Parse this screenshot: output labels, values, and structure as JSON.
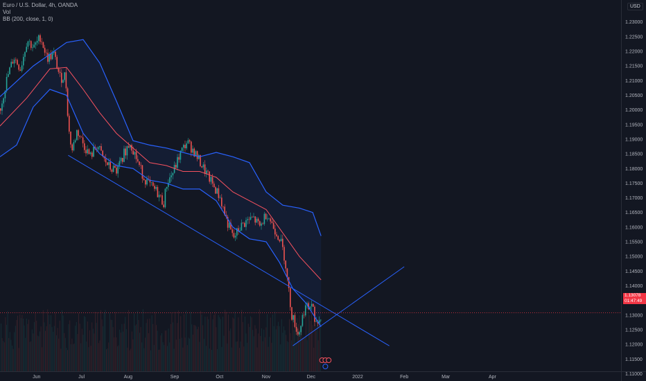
{
  "legend": {
    "symbol": "Euro / U.S. Dollar, 4h, OANDA",
    "volume": "Vol",
    "indicator": "BB (200, close, 1, 0)"
  },
  "currency": "USD",
  "last_price": {
    "value": "1.13078",
    "countdown": "01:47:49",
    "price": 1.13078
  },
  "colors": {
    "background": "#131722",
    "up": "#26a69a",
    "down": "#ef5350",
    "band": "#2962ff",
    "basis": "#f7525f",
    "trendline": "#2962ff",
    "axis_text": "#b2b5be",
    "price_line": "#f23645"
  },
  "chart_data": {
    "type": "candlestick",
    "symbol": "EURUSD",
    "timeframe": "4h",
    "y_range": [
      1.1075,
      1.2375
    ],
    "y_ticks": [
      "1.23000",
      "1.22500",
      "1.22000",
      "1.21500",
      "1.21000",
      "1.20500",
      "1.20000",
      "1.19500",
      "1.19000",
      "1.18500",
      "1.18000",
      "1.17500",
      "1.17000",
      "1.16500",
      "1.16000",
      "1.15500",
      "1.15000",
      "1.14500",
      "1.14000",
      "1.13500",
      "1.13000",
      "1.12500",
      "1.12000",
      "1.11500",
      "1.11000"
    ],
    "x_ticks": [
      {
        "label": "Jun",
        "t": 0.11
      },
      {
        "label": "Jul",
        "t": 0.245
      },
      {
        "label": "Aug",
        "t": 0.385
      },
      {
        "label": "Sep",
        "t": 0.525
      },
      {
        "label": "Oct",
        "t": 0.66
      },
      {
        "label": "Nov",
        "t": 0.8
      },
      {
        "label": "Dec",
        "t": 0.935
      },
      {
        "label": "2022",
        "t": 1.075
      },
      {
        "label": "Feb",
        "t": 1.215
      },
      {
        "label": "Mar",
        "t": 1.34
      },
      {
        "label": "Apr",
        "t": 1.48
      }
    ],
    "price_path": [
      {
        "t": 0.0,
        "p": 1.2005
      },
      {
        "t": 0.02,
        "p": 1.211
      },
      {
        "t": 0.04,
        "p": 1.218
      },
      {
        "t": 0.06,
        "p": 1.214
      },
      {
        "t": 0.08,
        "p": 1.224
      },
      {
        "t": 0.1,
        "p": 1.221
      },
      {
        "t": 0.12,
        "p": 1.225
      },
      {
        "t": 0.14,
        "p": 1.2175
      },
      {
        "t": 0.16,
        "p": 1.219
      },
      {
        "t": 0.18,
        "p": 1.2105
      },
      {
        "t": 0.195,
        "p": 1.212
      },
      {
        "t": 0.205,
        "p": 1.193
      },
      {
        "t": 0.215,
        "p": 1.186
      },
      {
        "t": 0.23,
        "p": 1.193
      },
      {
        "t": 0.25,
        "p": 1.188
      },
      {
        "t": 0.27,
        "p": 1.184
      },
      {
        "t": 0.29,
        "p": 1.188
      },
      {
        "t": 0.31,
        "p": 1.183
      },
      {
        "t": 0.33,
        "p": 1.18
      },
      {
        "t": 0.35,
        "p": 1.179
      },
      {
        "t": 0.37,
        "p": 1.185
      },
      {
        "t": 0.39,
        "p": 1.189
      },
      {
        "t": 0.41,
        "p": 1.183
      },
      {
        "t": 0.43,
        "p": 1.177
      },
      {
        "t": 0.45,
        "p": 1.174
      },
      {
        "t": 0.47,
        "p": 1.172
      },
      {
        "t": 0.49,
        "p": 1.168
      },
      {
        "t": 0.5,
        "p": 1.175
      },
      {
        "t": 0.52,
        "p": 1.179
      },
      {
        "t": 0.54,
        "p": 1.185
      },
      {
        "t": 0.56,
        "p": 1.189
      },
      {
        "t": 0.58,
        "p": 1.186
      },
      {
        "t": 0.6,
        "p": 1.182
      },
      {
        "t": 0.62,
        "p": 1.178
      },
      {
        "t": 0.64,
        "p": 1.174
      },
      {
        "t": 0.66,
        "p": 1.17
      },
      {
        "t": 0.68,
        "p": 1.162
      },
      {
        "t": 0.7,
        "p": 1.156
      },
      {
        "t": 0.72,
        "p": 1.16
      },
      {
        "t": 0.74,
        "p": 1.162
      },
      {
        "t": 0.76,
        "p": 1.163
      },
      {
        "t": 0.78,
        "p": 1.16
      },
      {
        "t": 0.8,
        "p": 1.165
      },
      {
        "t": 0.82,
        "p": 1.16
      },
      {
        "t": 0.84,
        "p": 1.156
      },
      {
        "t": 0.855,
        "p": 1.149
      },
      {
        "t": 0.865,
        "p": 1.139
      },
      {
        "t": 0.875,
        "p": 1.13
      },
      {
        "t": 0.885,
        "p": 1.127
      },
      {
        "t": 0.895,
        "p": 1.123
      },
      {
        "t": 0.905,
        "p": 1.128
      },
      {
        "t": 0.915,
        "p": 1.133
      },
      {
        "t": 0.925,
        "p": 1.132
      },
      {
        "t": 0.935,
        "p": 1.134
      },
      {
        "t": 0.945,
        "p": 1.129
      },
      {
        "t": 0.955,
        "p": 1.127
      },
      {
        "t": 0.965,
        "p": 1.1308
      }
    ],
    "bollinger": {
      "period": 200,
      "source": "close",
      "mult": 1,
      "offset": 0,
      "upper": [
        {
          "t": 0.0,
          "p": 1.2045
        },
        {
          "t": 0.1,
          "p": 1.215
        },
        {
          "t": 0.2,
          "p": 1.223
        },
        {
          "t": 0.25,
          "p": 1.224
        },
        {
          "t": 0.3,
          "p": 1.216
        },
        {
          "t": 0.35,
          "p": 1.203
        },
        {
          "t": 0.4,
          "p": 1.1895
        },
        {
          "t": 0.45,
          "p": 1.188
        },
        {
          "t": 0.5,
          "p": 1.187
        },
        {
          "t": 0.55,
          "p": 1.1855
        },
        {
          "t": 0.6,
          "p": 1.184
        },
        {
          "t": 0.65,
          "p": 1.1855
        },
        {
          "t": 0.7,
          "p": 1.184
        },
        {
          "t": 0.75,
          "p": 1.182
        },
        {
          "t": 0.8,
          "p": 1.172
        },
        {
          "t": 0.85,
          "p": 1.1675
        },
        {
          "t": 0.9,
          "p": 1.1665
        },
        {
          "t": 0.94,
          "p": 1.165
        },
        {
          "t": 0.965,
          "p": 1.157
        }
      ],
      "basis": [
        {
          "t": 0.0,
          "p": 1.1945
        },
        {
          "t": 0.08,
          "p": 1.204
        },
        {
          "t": 0.15,
          "p": 1.214
        },
        {
          "t": 0.2,
          "p": 1.2145
        },
        {
          "t": 0.25,
          "p": 1.207
        },
        {
          "t": 0.3,
          "p": 1.199
        },
        {
          "t": 0.35,
          "p": 1.192
        },
        {
          "t": 0.4,
          "p": 1.187
        },
        {
          "t": 0.45,
          "p": 1.182
        },
        {
          "t": 0.5,
          "p": 1.181
        },
        {
          "t": 0.55,
          "p": 1.179
        },
        {
          "t": 0.6,
          "p": 1.179
        },
        {
          "t": 0.65,
          "p": 1.177
        },
        {
          "t": 0.7,
          "p": 1.172
        },
        {
          "t": 0.75,
          "p": 1.169
        },
        {
          "t": 0.8,
          "p": 1.166
        },
        {
          "t": 0.85,
          "p": 1.158
        },
        {
          "t": 0.9,
          "p": 1.15
        },
        {
          "t": 0.965,
          "p": 1.142
        }
      ],
      "lower": [
        {
          "t": 0.0,
          "p": 1.184
        },
        {
          "t": 0.05,
          "p": 1.188
        },
        {
          "t": 0.1,
          "p": 1.201
        },
        {
          "t": 0.15,
          "p": 1.207
        },
        {
          "t": 0.2,
          "p": 1.205
        },
        {
          "t": 0.25,
          "p": 1.192
        },
        {
          "t": 0.3,
          "p": 1.185
        },
        {
          "t": 0.35,
          "p": 1.181
        },
        {
          "t": 0.4,
          "p": 1.18
        },
        {
          "t": 0.45,
          "p": 1.176
        },
        {
          "t": 0.5,
          "p": 1.175
        },
        {
          "t": 0.55,
          "p": 1.173
        },
        {
          "t": 0.6,
          "p": 1.173
        },
        {
          "t": 0.65,
          "p": 1.169
        },
        {
          "t": 0.7,
          "p": 1.16
        },
        {
          "t": 0.75,
          "p": 1.156
        },
        {
          "t": 0.8,
          "p": 1.155
        },
        {
          "t": 0.84,
          "p": 1.148
        },
        {
          "t": 0.88,
          "p": 1.139
        },
        {
          "t": 0.92,
          "p": 1.134
        },
        {
          "t": 0.965,
          "p": 1.126
        }
      ]
    },
    "trendlines": [
      {
        "name": "falling-channel-line",
        "from": {
          "t": 0.205,
          "p": 1.1845
        },
        "to": {
          "t": 1.17,
          "p": 1.1195
        }
      },
      {
        "name": "rising-support-line",
        "from": {
          "t": 0.88,
          "p": 1.1195
        },
        "to": {
          "t": 1.215,
          "p": 1.1465
        }
      }
    ],
    "grid": false,
    "legend_position": "top-left"
  }
}
